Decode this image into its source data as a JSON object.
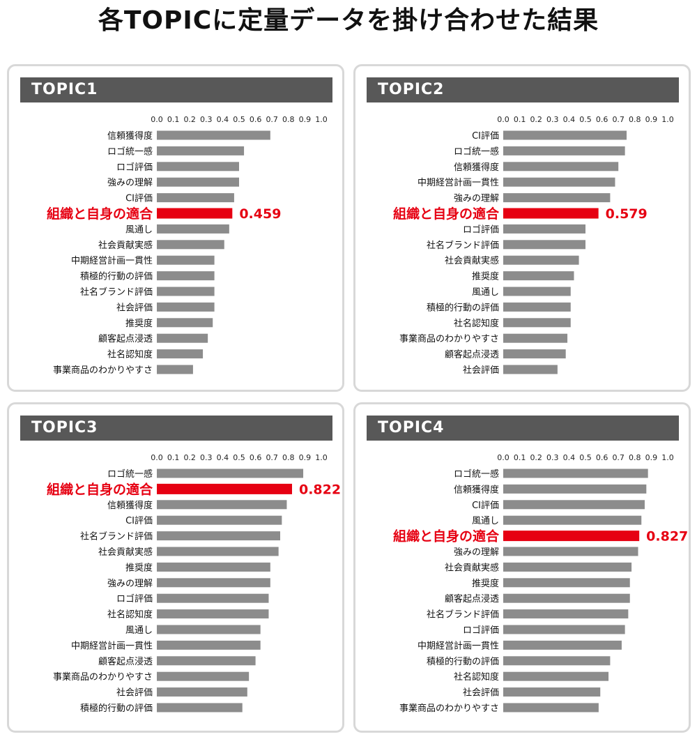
{
  "title": "各TOPICに定量データを掛け合わせた結果",
  "colors": {
    "bar": "#8c8c8c",
    "highlight": "#e60012",
    "header": "#585858"
  },
  "chart_data": [
    {
      "type": "bar",
      "title": "TOPIC1",
      "xlim": [
        0,
        1.0
      ],
      "ticks": [
        "0.0",
        "0.1",
        "0.2",
        "0.3",
        "0.4",
        "0.5",
        "0.6",
        "0.7",
        "0.8",
        "0.9",
        "1.0"
      ],
      "categories": [
        "信頼獲得度",
        "ロゴ統一感",
        "ロゴ評価",
        "強みの理解",
        "CI評価",
        "組織と自身の適合",
        "風通し",
        "社会貢献実感",
        "中期経営計画一貫性",
        "積極的行動の評価",
        "社名ブランド評価",
        "社会評価",
        "推奨度",
        "顧客起点浸透",
        "社名認知度",
        "事業商品のわかりやすさ"
      ],
      "values": [
        0.69,
        0.53,
        0.5,
        0.5,
        0.47,
        0.459,
        0.44,
        0.41,
        0.35,
        0.35,
        0.35,
        0.35,
        0.34,
        0.31,
        0.28,
        0.22
      ],
      "highlight_index": 5,
      "highlight_label": "0.459"
    },
    {
      "type": "bar",
      "title": "TOPIC2",
      "xlim": [
        0,
        1.0
      ],
      "ticks": [
        "0.0",
        "0.1",
        "0.2",
        "0.3",
        "0.4",
        "0.5",
        "0.6",
        "0.7",
        "0.8",
        "0.9",
        "1.0"
      ],
      "categories": [
        "CI評価",
        "ロゴ統一感",
        "信頼獲得度",
        "中期経営計画一貫性",
        "強みの理解",
        "組織と自身の適合",
        "ロゴ評価",
        "社名ブランド評価",
        "社会貢献実感",
        "推奨度",
        "風通し",
        "積極的行動の評価",
        "社名認知度",
        "事業商品のわかりやすさ",
        "顧客起点浸透",
        "社会評価"
      ],
      "values": [
        0.75,
        0.74,
        0.7,
        0.68,
        0.65,
        0.579,
        0.5,
        0.5,
        0.46,
        0.43,
        0.41,
        0.41,
        0.41,
        0.39,
        0.38,
        0.33
      ],
      "highlight_index": 5,
      "highlight_label": "0.579"
    },
    {
      "type": "bar",
      "title": "TOPIC3",
      "xlim": [
        0,
        1.0
      ],
      "ticks": [
        "0.0",
        "0.1",
        "0.2",
        "0.3",
        "0.4",
        "0.5",
        "0.6",
        "0.7",
        "0.8",
        "0.9",
        "1.0"
      ],
      "categories": [
        "ロゴ統一感",
        "組織と自身の適合",
        "信頼獲得度",
        "CI評価",
        "社名ブランド評価",
        "社会貢献実感",
        "推奨度",
        "強みの理解",
        "ロゴ評価",
        "社名認知度",
        "風通し",
        "中期経営計画一貫性",
        "顧客起点浸透",
        "事業商品のわかりやすさ",
        "社会評価",
        "積極的行動の評価"
      ],
      "values": [
        0.89,
        0.822,
        0.79,
        0.76,
        0.75,
        0.74,
        0.69,
        0.69,
        0.68,
        0.68,
        0.63,
        0.63,
        0.6,
        0.56,
        0.55,
        0.52
      ],
      "highlight_index": 1,
      "highlight_label": "0.822"
    },
    {
      "type": "bar",
      "title": "TOPIC4",
      "xlim": [
        0,
        1.0
      ],
      "ticks": [
        "0.0",
        "0.1",
        "0.2",
        "0.3",
        "0.4",
        "0.5",
        "0.6",
        "0.7",
        "0.8",
        "0.9",
        "1.0"
      ],
      "categories": [
        "ロゴ統一感",
        "信頼獲得度",
        "CI評価",
        "風通し",
        "組織と自身の適合",
        "強みの理解",
        "社会貢献実感",
        "推奨度",
        "顧客起点浸透",
        "社名ブランド評価",
        "ロゴ評価",
        "中期経営計画一貫性",
        "積極的行動の評価",
        "社名認知度",
        "社会評価",
        "事業商品のわかりやすさ"
      ],
      "values": [
        0.88,
        0.87,
        0.86,
        0.84,
        0.827,
        0.82,
        0.78,
        0.77,
        0.77,
        0.76,
        0.74,
        0.72,
        0.65,
        0.64,
        0.59,
        0.58
      ],
      "highlight_index": 4,
      "highlight_label": "0.827"
    }
  ]
}
